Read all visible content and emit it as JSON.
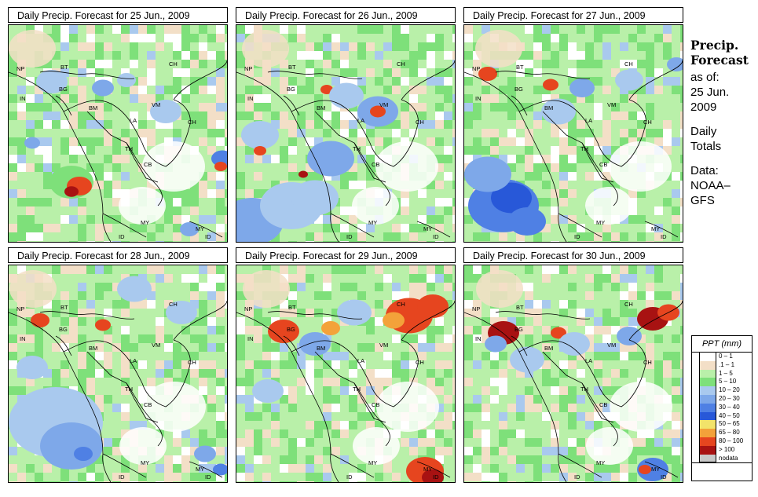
{
  "panels": [
    {
      "title": "Daily Precip. Forecast for 25 Jun., 2009"
    },
    {
      "title": "Daily Precip. Forecast for 26 Jun., 2009"
    },
    {
      "title": "Daily Precip. Forecast for 27 Jun., 2009"
    },
    {
      "title": "Daily Precip. Forecast for 28 Jun., 2009"
    },
    {
      "title": "Daily Precip. Forecast for 29 Jun., 2009"
    },
    {
      "title": "Daily Precip. Forecast for 30 Jun., 2009"
    }
  ],
  "country_labels": [
    "NP",
    "BT",
    "BG",
    "IN",
    "BM",
    "CH",
    "VM",
    "LA",
    "TH",
    "CB",
    "CH",
    "MY",
    "MY",
    "ID",
    "ID"
  ],
  "sidebar": {
    "title_line1": "Precip.",
    "title_line2": "Forecast",
    "asof_line1": "as of:",
    "asof_line2": "25 Jun.",
    "asof_line3": "2009",
    "totals_line1": "Daily",
    "totals_line2": "Totals",
    "data_line1": "Data:",
    "data_line2": "NOAA–",
    "data_line3": "GFS"
  },
  "legend": {
    "title": "PPT (mm)",
    "items": [
      {
        "label": "0 – 1",
        "color": "#ffffff"
      },
      {
        "label": ".1 – 1",
        "color": "#f3dfc7"
      },
      {
        "label": "1 – 5",
        "color": "#b9f0a9"
      },
      {
        "label": "5 – 10",
        "color": "#7ee07a"
      },
      {
        "label": "10 – 20",
        "color": "#a9c9ee"
      },
      {
        "label": "20 – 30",
        "color": "#7ea8e9"
      },
      {
        "label": "30 – 40",
        "color": "#4f80e4"
      },
      {
        "label": "40 – 50",
        "color": "#2858d8"
      },
      {
        "label": "50 – 65",
        "color": "#f2e36a"
      },
      {
        "label": "65 – 80",
        "color": "#f3a23a"
      },
      {
        "label": "80 – 100",
        "color": "#e6451f"
      },
      {
        "label": "> 100",
        "color": "#a81212"
      },
      {
        "label": "nodata",
        "color": "#c8c8c8"
      }
    ]
  }
}
